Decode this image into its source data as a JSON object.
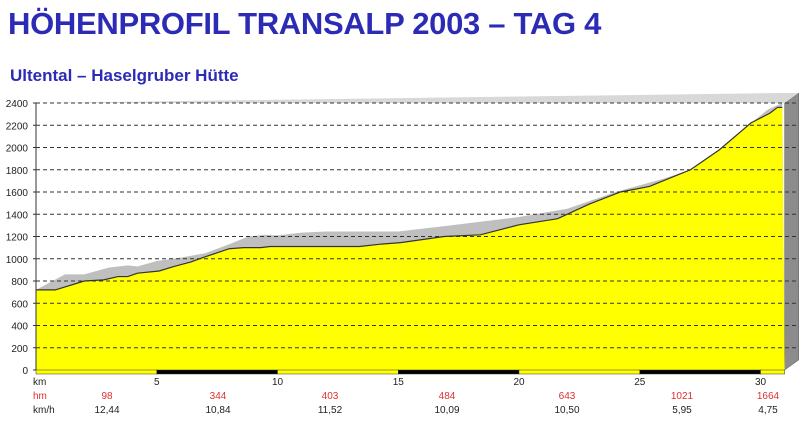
{
  "title": "HÖHENPROFIL TRANSALP 2003 – TAG 4",
  "subtitle": "Ultental – Haselgruber Hütte",
  "chart_data": {
    "type": "area",
    "title": "HÖHENPROFIL TRANSALP 2003 – TAG 4",
    "subtitle": "Ultental – Haselgruber Hütte",
    "xlabel": "km",
    "ylabel": "",
    "xlim": [
      0,
      31
    ],
    "ylim": [
      0,
      2400
    ],
    "yticks": [
      0,
      200,
      400,
      600,
      800,
      1000,
      1200,
      1400,
      1600,
      1800,
      2000,
      2200,
      2400
    ],
    "xticks": [
      5,
      10,
      15,
      20,
      25,
      30
    ],
    "grid": true,
    "colors": {
      "profile": "#ffff00",
      "upper": "#bfbfbf",
      "title": "#2b2bb5",
      "hm": "#e03030"
    },
    "series": [
      {
        "name": "upper",
        "points": [
          [
            0,
            720
          ],
          [
            1.2,
            860
          ],
          [
            2.0,
            860
          ],
          [
            3.0,
            920
          ],
          [
            3.8,
            940
          ],
          [
            4.2,
            930
          ],
          [
            5.0,
            980
          ],
          [
            6.0,
            1010
          ],
          [
            7.0,
            1050
          ],
          [
            8.0,
            1130
          ],
          [
            8.8,
            1200
          ],
          [
            9.5,
            1215
          ],
          [
            10.0,
            1210
          ],
          [
            11.0,
            1235
          ],
          [
            12.0,
            1245
          ],
          [
            15.0,
            1245
          ],
          [
            17.0,
            1295
          ],
          [
            20.0,
            1375
          ],
          [
            22.0,
            1450
          ],
          [
            24.0,
            1600
          ],
          [
            26.0,
            1720
          ],
          [
            28.0,
            1870
          ],
          [
            29.5,
            2200
          ],
          [
            30.3,
            2340
          ],
          [
            30.9,
            2400
          ]
        ]
      },
      {
        "name": "profile",
        "points": [
          [
            0,
            720
          ],
          [
            0.8,
            720
          ],
          [
            2.0,
            800
          ],
          [
            2.8,
            810
          ],
          [
            3.4,
            840
          ],
          [
            3.8,
            840
          ],
          [
            4.2,
            870
          ],
          [
            5.1,
            890
          ],
          [
            5.7,
            930
          ],
          [
            6.4,
            970
          ],
          [
            6.9,
            1010
          ],
          [
            8.0,
            1090
          ],
          [
            8.6,
            1100
          ],
          [
            9.3,
            1100
          ],
          [
            9.7,
            1110
          ],
          [
            10.5,
            1110
          ],
          [
            13.4,
            1110
          ],
          [
            14.2,
            1130
          ],
          [
            15.1,
            1145
          ],
          [
            16.9,
            1200
          ],
          [
            18.4,
            1215
          ],
          [
            20.0,
            1305
          ],
          [
            21.6,
            1360
          ],
          [
            22.9,
            1490
          ],
          [
            24.2,
            1600
          ],
          [
            25.4,
            1650
          ],
          [
            27.1,
            1800
          ],
          [
            28.3,
            1980
          ],
          [
            29.6,
            2220
          ],
          [
            30.4,
            2310
          ],
          [
            30.7,
            2360
          ],
          [
            30.9,
            2360
          ]
        ]
      }
    ],
    "segments": [
      {
        "from": 0,
        "to": 5,
        "hm": "98",
        "kmh": "12,44"
      },
      {
        "from": 5,
        "to": 10,
        "hm": "344",
        "kmh": "10,84"
      },
      {
        "from": 10,
        "to": 15,
        "hm": "403",
        "kmh": "11,52"
      },
      {
        "from": 15,
        "to": 20,
        "hm": "484",
        "kmh": "10,09"
      },
      {
        "from": 20,
        "to": 25,
        "hm": "643",
        "kmh": "10,50"
      },
      {
        "from": 25,
        "to": 30,
        "hm": "1021",
        "kmh": "5,95"
      },
      {
        "from": 30,
        "to": 31,
        "hm": "1664",
        "kmh": "4,75"
      }
    ],
    "row_labels": {
      "km": "km",
      "hm": "hm",
      "kmh": "km/h"
    }
  }
}
